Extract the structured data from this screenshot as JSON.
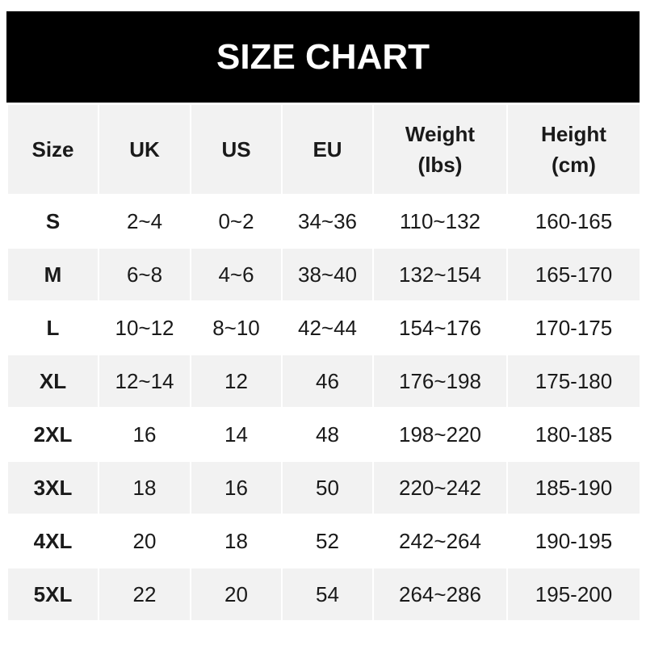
{
  "title": "SIZE CHART",
  "headers": [
    [
      "Size"
    ],
    [
      "UK"
    ],
    [
      "US"
    ],
    [
      "EU"
    ],
    [
      "Weight",
      "(lbs)"
    ],
    [
      "Height",
      "(cm)"
    ]
  ],
  "rows": [
    [
      "S",
      "2~4",
      "0~2",
      "34~36",
      "110~132",
      "160-165"
    ],
    [
      "M",
      "6~8",
      "4~6",
      "38~40",
      "132~154",
      "165-170"
    ],
    [
      "L",
      "10~12",
      "8~10",
      "42~44",
      "154~176",
      "170-175"
    ],
    [
      "XL",
      "12~14",
      "12",
      "46",
      "176~198",
      "175-180"
    ],
    [
      "2XL",
      "16",
      "14",
      "48",
      "198~220",
      "180-185"
    ],
    [
      "3XL",
      "18",
      "16",
      "50",
      "220~242",
      "185-190"
    ],
    [
      "4XL",
      "20",
      "18",
      "52",
      "242~264",
      "190-195"
    ],
    [
      "5XL",
      "22",
      "20",
      "54",
      "264~286",
      "195-200"
    ]
  ],
  "colors": {
    "header_bg": "#000000",
    "stripe": "#f2f2f2"
  }
}
